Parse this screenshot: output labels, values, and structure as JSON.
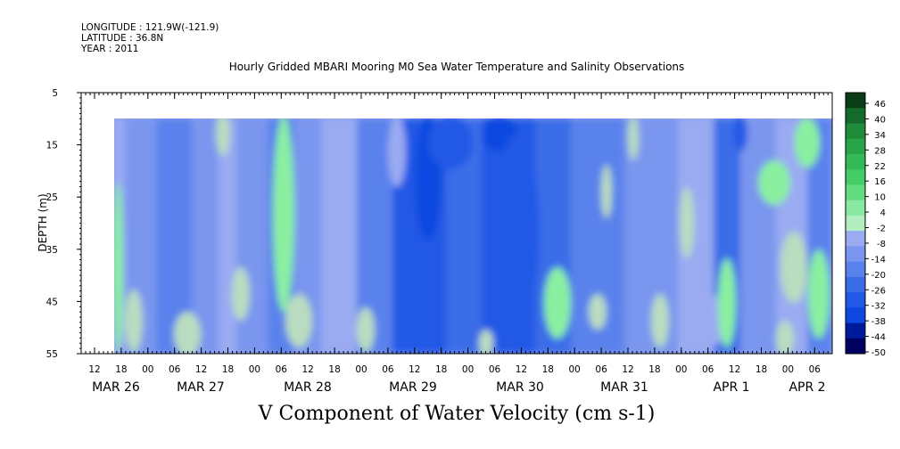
{
  "header": {
    "longitude": "LONGITUDE : 121.9W(-121.9)",
    "latitude": "LATITUDE : 36.8N",
    "year": "YEAR : 2011"
  },
  "chart_data": {
    "type": "heatmap",
    "title": "Hourly Gridded MBARI Mooring M0 Sea Water Temperature and Salinity Observations",
    "variable_title": "V Component of Water Velocity (cm s-1)",
    "ylabel": "DEPTH (m)",
    "ylim": [
      55,
      5
    ],
    "y_ticks": [
      5,
      15,
      25,
      35,
      45,
      55
    ],
    "data_depth_range": [
      10,
      55
    ],
    "hour_tick_labels": [
      "12",
      "18",
      "00",
      "06",
      "12",
      "18",
      "00",
      "06",
      "12",
      "18",
      "00",
      "06",
      "12",
      "18",
      "00",
      "06",
      "12",
      "18",
      "00",
      "06",
      "12",
      "18",
      "00",
      "06",
      "12",
      "18",
      "00",
      "06"
    ],
    "date_labels": [
      "MAR 26",
      "MAR 27",
      "MAR 28",
      "MAR 29",
      "MAR 30",
      "MAR 31",
      "APR  1",
      "APR  2"
    ],
    "colorbar": {
      "min": -50,
      "max": 50,
      "tick_labels": [
        "46",
        "40",
        "34",
        "28",
        "22",
        "16",
        "10",
        "4",
        "-2",
        "-8",
        "-14",
        "-20",
        "-26",
        "-32",
        "-38",
        "-44",
        "-50"
      ]
    },
    "grid": false
  }
}
